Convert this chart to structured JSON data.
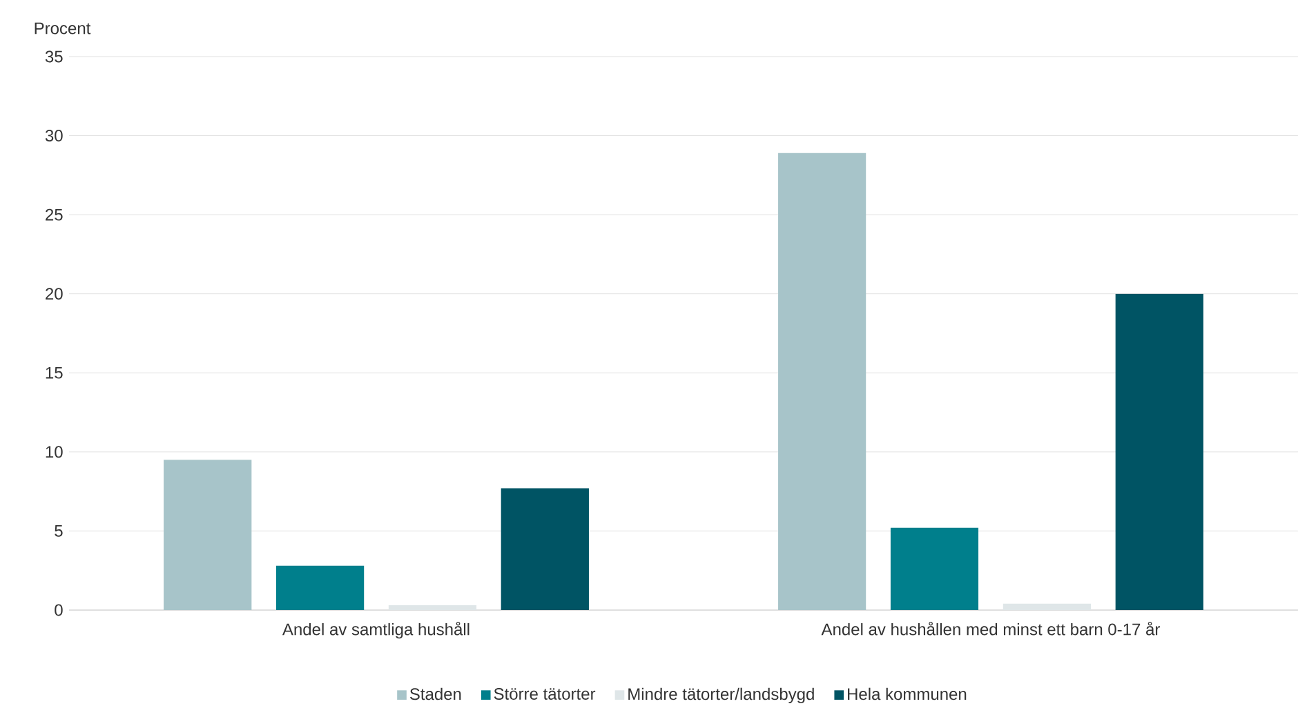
{
  "chart_data": {
    "type": "bar",
    "ylabel": "Procent",
    "categories": [
      "Andel av samtliga hushåll",
      "Andel av hushållen med minst ett barn 0-17 år"
    ],
    "series": [
      {
        "name": "Staden",
        "color": "#a7c4c9",
        "values": [
          9.5,
          28.9
        ]
      },
      {
        "name": "Större tätorter",
        "color": "#007f8c",
        "values": [
          2.8,
          5.2
        ]
      },
      {
        "name": "Mindre tätorter/landsbygd",
        "color": "#dfe6e8",
        "values": [
          0.3,
          0.4
        ]
      },
      {
        "name": "Hela kommunen",
        "color": "#005464",
        "values": [
          7.7,
          20.0
        ]
      }
    ],
    "ylim": [
      0,
      35
    ],
    "yticks": [
      0,
      5,
      10,
      15,
      20,
      25,
      30,
      35
    ],
    "grid": "y",
    "legend": "bottom"
  }
}
